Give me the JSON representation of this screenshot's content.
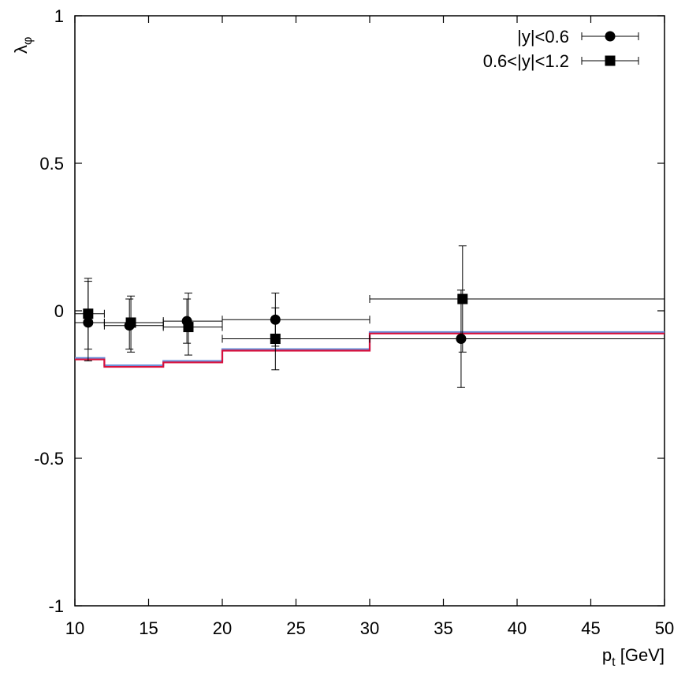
{
  "chart_data": {
    "type": "scatter",
    "title": "",
    "xlabel": "p",
    "xlabel_sub": "t",
    "xlabel_unit": "[GeV]",
    "ylabel": "λ",
    "ylabel_sub": "φ",
    "xlim": [
      10,
      50
    ],
    "ylim": [
      -1,
      1
    ],
    "xticks": [
      10,
      15,
      20,
      25,
      30,
      35,
      40,
      45,
      50
    ],
    "yticks": [
      -1,
      -0.5,
      0,
      0.5,
      1
    ],
    "xtick_labels": [
      "10",
      "15",
      "20",
      "25",
      "30",
      "35",
      "40",
      "45",
      "50"
    ],
    "ytick_labels": [
      "-1",
      "-0.5",
      "0",
      "0.5",
      "1"
    ],
    "grid": false,
    "legend_position": "top-right",
    "series": [
      {
        "name": "|y|<0.6",
        "marker": "circle",
        "color": "#000000",
        "points": [
          {
            "x": 10.9,
            "y": -0.04,
            "xlo": 10,
            "xhi": 12,
            "ylo": -0.17,
            "yhi": 0.1
          },
          {
            "x": 13.7,
            "y": -0.05,
            "xlo": 12,
            "xhi": 16,
            "ylo": -0.13,
            "yhi": 0.04
          },
          {
            "x": 17.6,
            "y": -0.035,
            "xlo": 16,
            "xhi": 20,
            "ylo": -0.11,
            "yhi": 0.04
          },
          {
            "x": 23.6,
            "y": -0.03,
            "xlo": 20,
            "xhi": 30,
            "ylo": -0.12,
            "yhi": 0.06
          },
          {
            "x": 36.2,
            "y": -0.095,
            "xlo": 30,
            "xhi": 50,
            "ylo": -0.26,
            "yhi": 0.07
          }
        ]
      },
      {
        "name": "0.6<|y|<1.2",
        "marker": "square",
        "color": "#000000",
        "points": [
          {
            "x": 10.9,
            "y": -0.01,
            "xlo": 10,
            "xhi": 12,
            "ylo": -0.13,
            "yhi": 0.11
          },
          {
            "x": 13.8,
            "y": -0.04,
            "xlo": 12,
            "xhi": 16,
            "ylo": -0.14,
            "yhi": 0.05
          },
          {
            "x": 17.7,
            "y": -0.055,
            "xlo": 16,
            "xhi": 20,
            "ylo": -0.15,
            "yhi": 0.06
          },
          {
            "x": 23.6,
            "y": -0.095,
            "xlo": 20,
            "xhi": 30,
            "ylo": -0.2,
            "yhi": 0.01
          },
          {
            "x": 36.3,
            "y": 0.04,
            "xlo": 30,
            "xhi": 50,
            "ylo": -0.14,
            "yhi": 0.22
          }
        ]
      }
    ],
    "steps": [
      {
        "name": "prediction-blue",
        "color": "#6a8fd8",
        "bins": [
          {
            "x0": 10,
            "x1": 12,
            "y": -0.16
          },
          {
            "x0": 12,
            "x1": 16,
            "y": -0.185
          },
          {
            "x0": 16,
            "x1": 20,
            "y": -0.17
          },
          {
            "x0": 20,
            "x1": 30,
            "y": -0.13
          },
          {
            "x0": 30,
            "x1": 50,
            "y": -0.072
          }
        ]
      },
      {
        "name": "prediction-red",
        "color": "#d8103c",
        "bins": [
          {
            "x0": 10,
            "x1": 12,
            "y": -0.165
          },
          {
            "x0": 12,
            "x1": 16,
            "y": -0.19
          },
          {
            "x0": 16,
            "x1": 20,
            "y": -0.175
          },
          {
            "x0": 20,
            "x1": 30,
            "y": -0.135
          },
          {
            "x0": 30,
            "x1": 50,
            "y": -0.077
          }
        ]
      }
    ]
  }
}
